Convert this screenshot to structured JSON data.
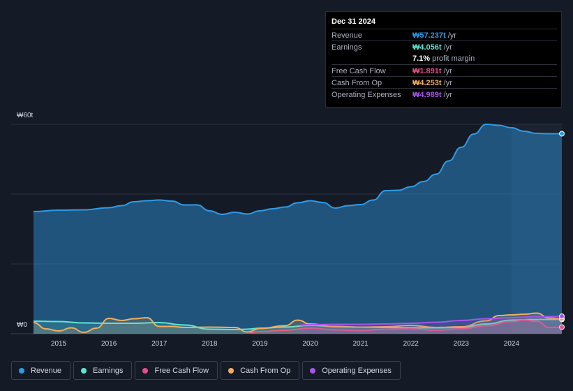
{
  "tooltip": {
    "date": "Dec 31 2024",
    "rows": [
      {
        "label": "Revenue",
        "value": "₩57.237t",
        "unit": "/yr",
        "color": "#2f9be6"
      },
      {
        "label": "Earnings",
        "value": "₩4.056t",
        "unit": "/yr",
        "color": "#5ee6d3"
      },
      {
        "label": "",
        "value": "7.1%",
        "unit": "profit margin",
        "color": "#ffffff"
      },
      {
        "label": "Free Cash Flow",
        "value": "₩1.891t",
        "unit": "/yr",
        "color": "#e0508a"
      },
      {
        "label": "Cash From Op",
        "value": "₩4.253t",
        "unit": "/yr",
        "color": "#f0ae5e"
      },
      {
        "label": "Operating Expenses",
        "value": "₩4.989t",
        "unit": "/yr",
        "color": "#a655e8"
      }
    ]
  },
  "legend": [
    {
      "label": "Revenue",
      "color": "#2f9be6"
    },
    {
      "label": "Earnings",
      "color": "#5ee6d3"
    },
    {
      "label": "Free Cash Flow",
      "color": "#e0508a"
    },
    {
      "label": "Cash From Op",
      "color": "#f0ae5e"
    },
    {
      "label": "Operating Expenses",
      "color": "#a655e8"
    }
  ],
  "chart_data": {
    "type": "area",
    "ylabel_top": "₩60t",
    "ylabel_bottom": "₩0",
    "ylim": [
      0,
      60
    ],
    "xlim": [
      2014.5,
      2025.0
    ],
    "x_ticks": [
      "2015",
      "2016",
      "2017",
      "2018",
      "2019",
      "2020",
      "2021",
      "2022",
      "2023",
      "2024"
    ],
    "grid": true,
    "legend_position": "bottom",
    "series": [
      {
        "name": "Revenue",
        "color": "#2f9be6",
        "x": [
          2014.5,
          2015.0,
          2015.5,
          2016.0,
          2016.25,
          2016.5,
          2016.75,
          2017.0,
          2017.25,
          2017.5,
          2017.75,
          2018.0,
          2018.25,
          2018.5,
          2018.75,
          2019.0,
          2019.25,
          2019.5,
          2019.75,
          2020.0,
          2020.25,
          2020.5,
          2020.75,
          2021.0,
          2021.25,
          2021.5,
          2021.75,
          2022.0,
          2022.25,
          2022.5,
          2022.75,
          2023.0,
          2023.25,
          2023.5,
          2023.75,
          2024.0,
          2024.25,
          2024.5,
          2024.75,
          2025.0
        ],
        "values": [
          35.0,
          35.4,
          35.5,
          36.1,
          36.7,
          37.8,
          38.1,
          38.3,
          38.0,
          36.9,
          36.9,
          35.2,
          34.2,
          34.8,
          34.3,
          35.2,
          35.8,
          36.3,
          37.5,
          38.1,
          37.6,
          36.0,
          36.7,
          37.0,
          38.3,
          41.0,
          41.1,
          42.1,
          43.6,
          45.7,
          49.5,
          53.4,
          57.2,
          60.0,
          59.7,
          59.0,
          58.0,
          57.4,
          57.3,
          57.3
        ]
      },
      {
        "name": "Earnings",
        "color": "#5ee6d3",
        "x": [
          2014.5,
          2015.0,
          2015.5,
          2016.0,
          2016.5,
          2017.0,
          2017.5,
          2018.0,
          2018.5,
          2018.75,
          2019.0,
          2019.5,
          2020.0,
          2020.5,
          2021.0,
          2021.5,
          2022.0,
          2022.5,
          2023.0,
          2023.5,
          2024.0,
          2024.5,
          2025.0
        ],
        "values": [
          3.6,
          3.5,
          3.1,
          3.0,
          3.0,
          3.2,
          2.5,
          1.3,
          1.2,
          1.3,
          1.6,
          1.9,
          2.4,
          2.1,
          1.9,
          1.8,
          1.7,
          1.7,
          1.8,
          2.8,
          3.9,
          4.1,
          4.1
        ]
      },
      {
        "name": "Free Cash Flow",
        "color": "#e0508a",
        "x": [
          2018.8,
          2019.0,
          2019.5,
          2020.0,
          2020.5,
          2021.0,
          2021.5,
          2022.0,
          2022.5,
          2023.0,
          2023.5,
          2024.0,
          2024.25,
          2024.5,
          2024.75,
          2025.0
        ],
        "values": [
          0.3,
          0.6,
          1.0,
          1.6,
          1.1,
          0.9,
          1.3,
          1.4,
          1.0,
          1.4,
          2.3,
          3.5,
          3.9,
          3.6,
          1.8,
          1.9
        ]
      },
      {
        "name": "Cash From Op",
        "color": "#f0ae5e",
        "x": [
          2014.5,
          2014.75,
          2015.0,
          2015.25,
          2015.5,
          2015.75,
          2016.0,
          2016.25,
          2016.5,
          2016.75,
          2017.0,
          2017.25,
          2017.5,
          2018.0,
          2018.5,
          2018.75,
          2019.0,
          2019.5,
          2019.75,
          2020.0,
          2020.5,
          2021.0,
          2021.5,
          2022.0,
          2022.5,
          2023.0,
          2023.5,
          2023.75,
          2024.0,
          2024.25,
          2024.5,
          2024.75,
          2025.0
        ],
        "values": [
          3.2,
          1.4,
          0.8,
          1.7,
          0.4,
          1.6,
          4.4,
          3.8,
          4.3,
          4.6,
          2.1,
          2.1,
          1.8,
          1.9,
          1.8,
          0.5,
          1.5,
          2.3,
          3.9,
          2.8,
          2.0,
          1.9,
          2.0,
          2.4,
          1.8,
          2.0,
          3.7,
          5.2,
          5.4,
          5.6,
          5.9,
          4.5,
          4.3
        ]
      },
      {
        "name": "Operating Expenses",
        "color": "#a655e8",
        "x": [
          2019.8,
          2020.0,
          2020.5,
          2021.0,
          2021.5,
          2022.0,
          2022.5,
          2023.0,
          2023.5,
          2024.0,
          2024.5,
          2025.0
        ],
        "values": [
          2.5,
          2.6,
          2.7,
          2.7,
          2.8,
          3.0,
          3.3,
          3.8,
          4.3,
          4.6,
          4.9,
          5.0
        ]
      }
    ]
  }
}
